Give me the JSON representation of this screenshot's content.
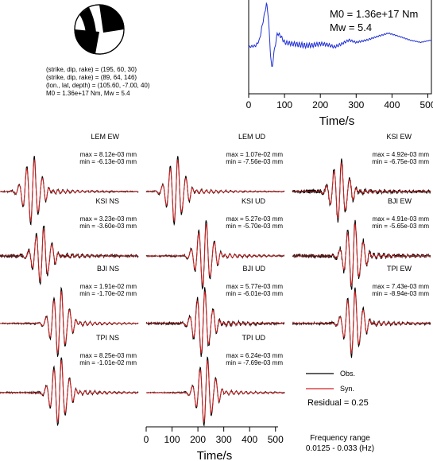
{
  "source_params": {
    "lines": [
      "(strike, dip, rake) = (195, 60, 30)",
      "(strike, dip, rake) = (89, 64, 146)",
      "(lon., lat, depth) = (105.60, -7.00, 40)",
      "M0 = 1.36e+17 Nm, Mw = 5.4"
    ]
  },
  "stf_panel": {
    "m0_text": "M0 = 1.36e+17 Nm",
    "mw_text": "Mw = 5.4",
    "xlabel": "Time/s",
    "xticks": [
      "0",
      "100",
      "200",
      "300",
      "400",
      "500"
    ]
  },
  "legend": {
    "obs_label": "Obs.",
    "syn_label": "Syn.",
    "obs_color": "#000000",
    "syn_color": "#d42020",
    "stf_color": "#1f2fd6",
    "residual_text": "Residual = 0.25"
  },
  "bottom_axis": {
    "xlabel": "Time/s",
    "xticks": [
      "0",
      "100",
      "200",
      "300",
      "400",
      "500"
    ]
  },
  "frequency": {
    "title": "Frequency range",
    "value": "0.0125 - 0.033 (Hz)"
  },
  "chart_data": [
    {
      "type": "line",
      "id": "moment-rate-function",
      "x_range": [
        0,
        510
      ],
      "series": [
        {
          "color": "#1f2fd6",
          "points_x": [
            0,
            20,
            30,
            40,
            50,
            55,
            60,
            65,
            70,
            80,
            90,
            100,
            120,
            140,
            160,
            180,
            200,
            220,
            240,
            260,
            280,
            300,
            330,
            360,
            390,
            420,
            450,
            480,
            510
          ],
          "points_y": [
            0.05,
            0.08,
            0.2,
            0.6,
            1.0,
            0.7,
            0.0,
            -0.45,
            -0.1,
            0.35,
            0.28,
            0.15,
            0.12,
            0.1,
            0.08,
            0.09,
            0.12,
            0.1,
            0.05,
            0.12,
            0.2,
            0.15,
            0.2,
            0.28,
            0.35,
            0.28,
            0.2,
            0.15,
            0.2
          ]
        }
      ]
    },
    {
      "type": "line",
      "id": "waveforms",
      "x_range": [
        0,
        510
      ],
      "xlabel": "Time/s",
      "stations": [
        {
          "name": "LEM EW",
          "max": "max = 8.12e-03 mm",
          "min": "min = -6.13e-03 mm",
          "peak_time": 120,
          "amp": 1.0,
          "obs_noise": 0.12
        },
        {
          "name": "KSI NS",
          "max": "max = 3.23e-03 mm",
          "min": "min = -3.60e-03 mm",
          "peak_time": 155,
          "amp": 0.85,
          "obs_noise": 0.3
        },
        {
          "name": "BJI NS",
          "max": "max = 1.91e-02 mm",
          "min": "min = -1.70e-02 mm",
          "peak_time": 220,
          "amp": 1.0,
          "obs_noise": 0.1
        },
        {
          "name": "TPI NS",
          "max": "max = 8.25e-03 mm",
          "min": "min = -1.01e-02 mm",
          "peak_time": 220,
          "amp": 1.0,
          "obs_noise": 0.12
        },
        {
          "name": "LEM UD",
          "max": "max = 1.07e-02 mm",
          "min": "min = -7.56e-03 mm",
          "peak_time": 110,
          "amp": 1.0,
          "obs_noise": 0.1
        },
        {
          "name": "KSI UD",
          "max": "max = 5.27e-03 mm",
          "min": "min = -5.70e-03 mm",
          "peak_time": 215,
          "amp": 1.0,
          "obs_noise": 0.12
        },
        {
          "name": "BJI UD",
          "max": "max = 5.77e-03 mm",
          "min": "min = -6.01e-03 mm",
          "peak_time": 210,
          "amp": 1.0,
          "obs_noise": 0.22
        },
        {
          "name": "TPI UD",
          "max": "max = 6.24e-03 mm",
          "min": "min = -7.69e-03 mm",
          "peak_time": 220,
          "amp": 1.0,
          "obs_noise": 0.1
        },
        {
          "name": "KSI EW",
          "max": "max = 4.92e-03 mm",
          "min": "min = -6.75e-03 mm",
          "peak_time": 175,
          "amp": 0.9,
          "obs_noise": 0.35
        },
        {
          "name": "BJI EW",
          "max": "max = 4.91e-03 mm",
          "min": "min = -5.65e-03 mm",
          "peak_time": 225,
          "amp": 1.0,
          "obs_noise": 0.3
        },
        {
          "name": "TPI EW",
          "max": "max = 7.43e-03 mm",
          "min": "min = -8.94e-03 mm",
          "peak_time": 225,
          "amp": 1.0,
          "obs_noise": 0.18
        }
      ]
    }
  ]
}
